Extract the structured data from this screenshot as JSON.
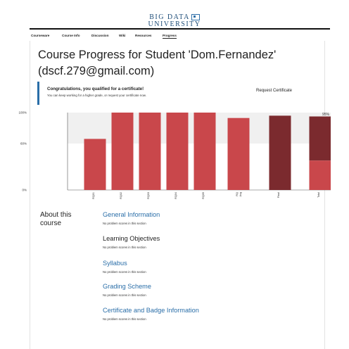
{
  "logo": {
    "line1": "BIG DATA",
    "line2": "UNIVERSITY",
    "icon": "book-icon"
  },
  "nav": {
    "tabs": [
      "Courseware",
      "Course Info",
      "Discussion",
      "Wiki",
      "Resources",
      "Progress"
    ],
    "active": "Progress"
  },
  "page": {
    "title": "Course Progress for Student 'Dom.Fernandez' (dscf.279@gmail.com)"
  },
  "certificate": {
    "heading": "Congratulations, you qualified for a certificate!",
    "subtext": "You can keep working for a higher grade, or request your certificate now.",
    "request_label": "Request Certificate"
  },
  "chart_data": {
    "type": "bar",
    "y_ticks": [
      {
        "label": "100%",
        "value": 100
      },
      {
        "label": "60%",
        "value": 60
      },
      {
        "label": "0%",
        "value": 0
      }
    ],
    "ylim": [
      0,
      100
    ],
    "categories": [
      "RQ01",
      "RQ02",
      "RQ03",
      "RQ04",
      "RQ05",
      "RQ Avg",
      "Final",
      "Total"
    ],
    "values": [
      66,
      100,
      100,
      100,
      100,
      93,
      96,
      95
    ],
    "total_label": "95%",
    "pass_threshold": 60,
    "colors": {
      "quiz": "#c9474b",
      "final": "#7b2a2e",
      "total_top": "#7b2a2e",
      "total_bottom": "#c9474b",
      "band": "#f0f0f0",
      "axis": "#555555"
    }
  },
  "about": {
    "title": "About this course"
  },
  "sections": [
    {
      "title": "General Information",
      "note": "No problem scores in this section",
      "style": "link"
    },
    {
      "title": "Learning Objectives",
      "note": "No problem scores in this section",
      "style": "dark"
    },
    {
      "title": "Syllabus",
      "note": "No problem scores in this section",
      "style": "link"
    },
    {
      "title": "Grading Scheme",
      "note": "No problem scores in this section",
      "style": "link"
    },
    {
      "title": "Certificate and Badge Information",
      "note": "No problem scores in this section",
      "style": "link"
    }
  ]
}
